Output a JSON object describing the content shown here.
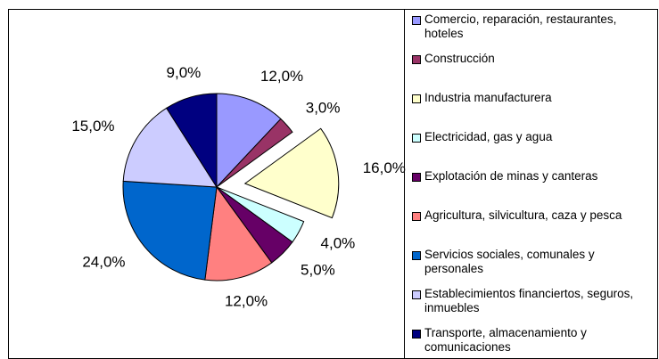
{
  "chart_data": {
    "type": "pie",
    "categories": [
      "Comercio, reparación, restaurantes, hoteles",
      "Construcción",
      "Industria manufacturera",
      "Electricidad, gas y agua",
      "Explotación de minas y canteras",
      "Agricultura, silvicultura, caza y pesca",
      "Servicios sociales, comunales y personales",
      "Establecimientos financiertos, seguros, inmuebles",
      "Transporte, almacenamiento y comunicaciones"
    ],
    "values": [
      12,
      3,
      16,
      4,
      5,
      12,
      24,
      15,
      9
    ],
    "value_labels": [
      "12,0%",
      "3,0%",
      "16,0%",
      "4,0%",
      "5,0%",
      "12,0%",
      "24,0%",
      "15,0%",
      "9,0%"
    ],
    "colors": [
      "#9999ff",
      "#993366",
      "#ffffcc",
      "#ccffff",
      "#660066",
      "#ff8080",
      "#0066cc",
      "#ccccff",
      "#000080"
    ],
    "exploded": [
      2
    ],
    "legend": "right"
  }
}
